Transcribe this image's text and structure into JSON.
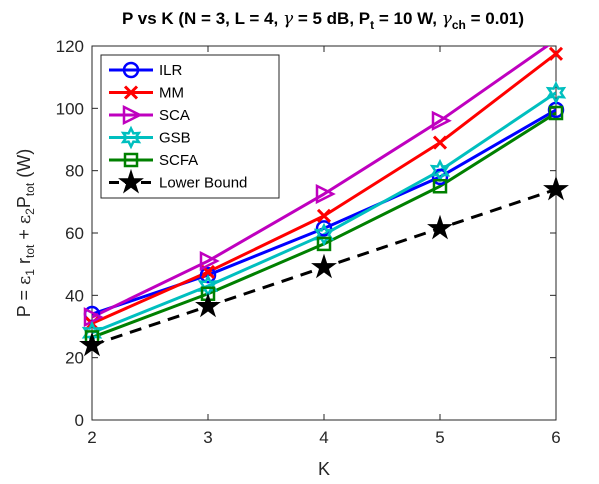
{
  "chart_data": {
    "type": "line",
    "title": "P vs K (N = 3, L = 4, γ = 5 dB, P_t = 10 W, γ_ch = 0.01)",
    "title_parts": {
      "main": "P vs K (N = 3, L = 4, ",
      "gamma": "γ",
      "gamma_value": " = 5 dB, P",
      "pt_sub": "t",
      "pt_value": " = 10 W, ",
      "gch": "γ",
      "gch_sub": "ch",
      "gch_value": " = 0.01)"
    },
    "xlabel": "K",
    "ylabel": "P = ε1 rtot + ε2 Ptot (W)",
    "ylabel_parts": {
      "p": "P = ",
      "eps": "ε",
      "s1": "1",
      "r": " r",
      "tot1": "tot",
      "plus": " + ",
      "eps2": "ε",
      "s2": "2",
      "P": "P",
      "tot2": "tot",
      "unit": " (W)"
    },
    "x": [
      2,
      3,
      4,
      5,
      6
    ],
    "xlim": [
      2,
      6
    ],
    "ylim": [
      0,
      120
    ],
    "xticks": [
      "2",
      "3",
      "4",
      "5",
      "6"
    ],
    "yticks": [
      "0",
      "20",
      "40",
      "60",
      "80",
      "100",
      "120"
    ],
    "grid": false,
    "legend_position": "top-left",
    "series": [
      {
        "name": "ILR",
        "color": "#0000FF",
        "marker": "circle",
        "dash": "solid",
        "values": [
          34,
          46.5,
          61.5,
          78,
          99.5
        ]
      },
      {
        "name": "MM",
        "color": "#FF0000",
        "marker": "x",
        "dash": "solid",
        "values": [
          31,
          47.5,
          65.5,
          89,
          117.5
        ]
      },
      {
        "name": "SCA",
        "color": "#BF00BF",
        "marker": "triangle-right",
        "dash": "solid",
        "values": [
          33,
          51,
          72.5,
          96,
          122
        ]
      },
      {
        "name": "GSB",
        "color": "#00BFBF",
        "marker": "hexagram",
        "dash": "solid",
        "values": [
          28,
          43,
          59.5,
          80,
          105
        ]
      },
      {
        "name": "SCFA",
        "color": "#008000",
        "marker": "square",
        "dash": "solid",
        "values": [
          26.5,
          40.5,
          56.5,
          75,
          98.5
        ]
      },
      {
        "name": "Lower Bound",
        "color": "#000000",
        "marker": "pentagram",
        "dash": "dashed",
        "values": [
          24,
          36.5,
          49,
          61.5,
          74
        ]
      }
    ]
  }
}
